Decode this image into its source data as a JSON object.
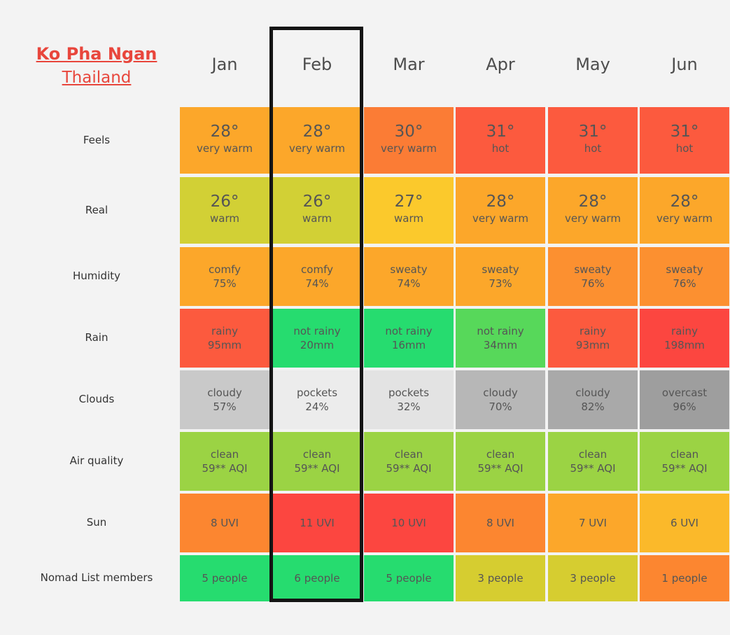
{
  "place": {
    "city": "Ko Pha Ngan",
    "country": "Thailand"
  },
  "months": [
    "Jan",
    "Feb",
    "Mar",
    "Apr",
    "May",
    "Jun"
  ],
  "highlighted_month": "Feb",
  "row_labels": [
    "Feels",
    "Real",
    "Humidity",
    "Rain",
    "Clouds",
    "Air quality",
    "Sun",
    "Nomad List members"
  ],
  "rows": [
    {
      "key": "feels",
      "cells": [
        {
          "top": "28°",
          "bottom": "very warm",
          "color": "#fca72a"
        },
        {
          "top": "28°",
          "bottom": "very warm",
          "color": "#fca72a"
        },
        {
          "top": "30°",
          "bottom": "very warm",
          "color": "#fb7c35"
        },
        {
          "top": "31°",
          "bottom": "hot",
          "color": "#fc5a3e"
        },
        {
          "top": "31°",
          "bottom": "hot",
          "color": "#fc5a3e"
        },
        {
          "top": "31°",
          "bottom": "hot",
          "color": "#fc5a3e"
        }
      ]
    },
    {
      "key": "real",
      "cells": [
        {
          "top": "26°",
          "bottom": "warm",
          "color": "#d2d035"
        },
        {
          "top": "26°",
          "bottom": "warm",
          "color": "#d2d035"
        },
        {
          "top": "27°",
          "bottom": "warm",
          "color": "#fbc92c"
        },
        {
          "top": "28°",
          "bottom": "very warm",
          "color": "#fca72a"
        },
        {
          "top": "28°",
          "bottom": "very warm",
          "color": "#fca72a"
        },
        {
          "top": "28°",
          "bottom": "very warm",
          "color": "#fca72a"
        }
      ]
    },
    {
      "key": "humidity",
      "cells": [
        {
          "top": "comfy",
          "bottom": "75%",
          "color": "#fca72a"
        },
        {
          "top": "comfy",
          "bottom": "74%",
          "color": "#fca72a"
        },
        {
          "top": "sweaty",
          "bottom": "74%",
          "color": "#fca72a"
        },
        {
          "top": "sweaty",
          "bottom": "73%",
          "color": "#fca72a"
        },
        {
          "top": "sweaty",
          "bottom": "76%",
          "color": "#fc9030"
        },
        {
          "top": "sweaty",
          "bottom": "76%",
          "color": "#fc9030"
        }
      ]
    },
    {
      "key": "rain",
      "cells": [
        {
          "top": "rainy",
          "bottom": "95mm",
          "color": "#fc5a3e"
        },
        {
          "top": "not rainy",
          "bottom": "20mm",
          "color": "#26dc6f"
        },
        {
          "top": "not rainy",
          "bottom": "16mm",
          "color": "#26dc6f"
        },
        {
          "top": "not rainy",
          "bottom": "34mm",
          "color": "#57d85a"
        },
        {
          "top": "rainy",
          "bottom": "93mm",
          "color": "#fc5a3e"
        },
        {
          "top": "rainy",
          "bottom": "198mm",
          "color": "#fc4640"
        }
      ]
    },
    {
      "key": "clouds",
      "cells": [
        {
          "top": "cloudy",
          "bottom": "57%",
          "color": "#c9c9c9"
        },
        {
          "top": "pockets",
          "bottom": "24%",
          "color": "#ececec"
        },
        {
          "top": "pockets",
          "bottom": "32%",
          "color": "#e3e3e3"
        },
        {
          "top": "cloudy",
          "bottom": "70%",
          "color": "#b7b7b7"
        },
        {
          "top": "cloudy",
          "bottom": "82%",
          "color": "#a9a9a9"
        },
        {
          "top": "overcast",
          "bottom": "96%",
          "color": "#9e9e9e"
        }
      ]
    },
    {
      "key": "air_quality",
      "cells": [
        {
          "top": "clean",
          "bottom": "59** AQI",
          "color": "#9bd344"
        },
        {
          "top": "clean",
          "bottom": "59** AQI",
          "color": "#9bd344"
        },
        {
          "top": "clean",
          "bottom": "59** AQI",
          "color": "#9bd344"
        },
        {
          "top": "clean",
          "bottom": "59** AQI",
          "color": "#9bd344"
        },
        {
          "top": "clean",
          "bottom": "59** AQI",
          "color": "#9bd344"
        },
        {
          "top": "clean",
          "bottom": "59** AQI",
          "color": "#9bd344"
        }
      ]
    },
    {
      "key": "sun",
      "cells": [
        {
          "top": "",
          "bottom": "8 UVI",
          "color": "#fc8630"
        },
        {
          "top": "",
          "bottom": "11 UVI",
          "color": "#fc4640"
        },
        {
          "top": "",
          "bottom": "10 UVI",
          "color": "#fc4640"
        },
        {
          "top": "",
          "bottom": "8 UVI",
          "color": "#fc8630"
        },
        {
          "top": "",
          "bottom": "7 UVI",
          "color": "#fca72a"
        },
        {
          "top": "",
          "bottom": "6 UVI",
          "color": "#fbb92a"
        }
      ]
    },
    {
      "key": "members",
      "cells": [
        {
          "top": "",
          "bottom": "5 people",
          "color": "#26dc6f"
        },
        {
          "top": "",
          "bottom": "6 people",
          "color": "#26dc6f"
        },
        {
          "top": "",
          "bottom": "5 people",
          "color": "#26dc6f"
        },
        {
          "top": "",
          "bottom": "3 people",
          "color": "#d6cd30"
        },
        {
          "top": "",
          "bottom": "3 people",
          "color": "#d6cd30"
        },
        {
          "top": "",
          "bottom": "1 people",
          "color": "#fc8630"
        }
      ]
    }
  ]
}
